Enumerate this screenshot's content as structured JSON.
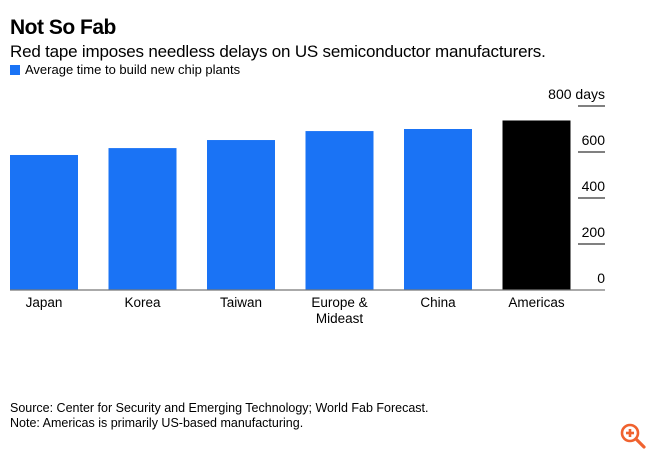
{
  "chart_data": {
    "type": "bar",
    "title": "Not So Fab",
    "subtitle": "Red tape imposes needless delays on US semiconductor manufacturers.",
    "legend": [
      {
        "name": "Average time to build new chip plants",
        "color": "#1a73f5"
      }
    ],
    "categories": [
      "Japan",
      "Korea",
      "Taiwan",
      "Europe & Mideast",
      "China",
      "Americas"
    ],
    "category_lines": [
      [
        "Japan"
      ],
      [
        "Korea"
      ],
      [
        "Taiwan"
      ],
      [
        "Europe &",
        "Mideast"
      ],
      [
        "China"
      ],
      [
        "Americas"
      ]
    ],
    "values": [
      587,
      617,
      652,
      691,
      700,
      737
    ],
    "bar_colors": [
      "#1a73f5",
      "#1a73f5",
      "#1a73f5",
      "#1a73f5",
      "#1a73f5",
      "#000000"
    ],
    "yticks": [
      0,
      200,
      400,
      600,
      800
    ],
    "ytick_labels": [
      "0",
      "200",
      "400",
      "600",
      "800 days"
    ],
    "ylim": [
      0,
      800
    ],
    "xlabel": "",
    "ylabel": "days",
    "y_axis_side": "right",
    "grid": false,
    "legend_position": "top-left"
  },
  "footer": {
    "source": "Source: Center for Security and Emerging Technology; World Fab Forecast.",
    "note": "Note: Americas is primarily US-based manufacturing."
  },
  "controls": {
    "zoom_icon": "zoom-in-icon",
    "zoom_color": "#f0622f"
  }
}
